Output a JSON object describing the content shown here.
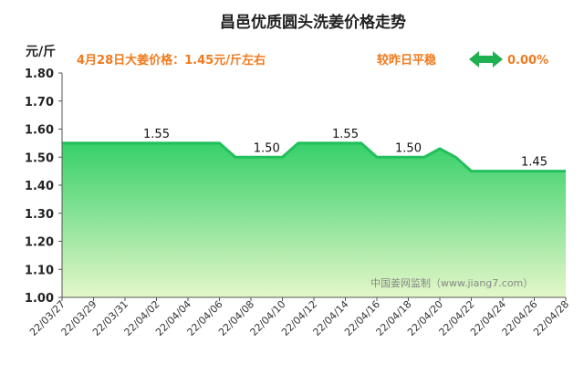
{
  "header": {
    "title": "昌邑优质圆头洗姜价格走势",
    "unit": "元/斤",
    "price_note": "4月28日大姜价格：1.45元/斤左右",
    "compare_label": "较昨日平稳",
    "compare_value": "0.00%"
  },
  "watermark": "中国姜网监制（www.jiang7.com）",
  "colors": {
    "line": "#22c05c",
    "fill_top": "#37d06a",
    "fill_bottom": "#e4f7c8",
    "accent": "#f07a1e",
    "arrow": "#1fb052"
  },
  "icons": {
    "trend": "double-arrow-icon"
  },
  "chart_data": {
    "type": "area",
    "title": "昌邑优质圆头洗姜价格走势",
    "ylabel": "元/斤",
    "ylim": [
      1.0,
      1.8
    ],
    "yticks": [
      "1.00",
      "1.10",
      "1.20",
      "1.30",
      "1.40",
      "1.50",
      "1.60",
      "1.70",
      "1.80"
    ],
    "x_tick_labels": [
      "22/03/27",
      "22/03/29",
      "22/03/31",
      "22/04/02",
      "22/04/04",
      "22/04/06",
      "22/04/08",
      "22/04/10",
      "22/04/12",
      "22/04/14",
      "22/04/16",
      "22/04/18",
      "22/04/20",
      "22/04/22",
      "22/04/24",
      "22/04/26",
      "22/04/28"
    ],
    "x": [
      "22/03/27",
      "22/03/28",
      "22/03/29",
      "22/03/30",
      "22/03/31",
      "22/04/01",
      "22/04/02",
      "22/04/03",
      "22/04/04",
      "22/04/05",
      "22/04/06",
      "22/04/07",
      "22/04/08",
      "22/04/09",
      "22/04/10",
      "22/04/11",
      "22/04/12",
      "22/04/13",
      "22/04/14",
      "22/04/15",
      "22/04/16",
      "22/04/17",
      "22/04/18",
      "22/04/19",
      "22/04/20",
      "22/04/21",
      "22/04/22",
      "22/04/23",
      "22/04/24",
      "22/04/25",
      "22/04/26",
      "22/04/27",
      "22/04/28"
    ],
    "values": [
      1.55,
      1.55,
      1.55,
      1.55,
      1.55,
      1.55,
      1.55,
      1.55,
      1.55,
      1.55,
      1.55,
      1.5,
      1.5,
      1.5,
      1.5,
      1.55,
      1.55,
      1.55,
      1.55,
      1.55,
      1.5,
      1.5,
      1.5,
      1.5,
      1.53,
      1.5,
      1.45,
      1.45,
      1.45,
      1.45,
      1.45,
      1.45,
      1.45
    ],
    "data_labels": [
      {
        "x": "22/04/02",
        "y": 1.55,
        "text": "1.55"
      },
      {
        "x": "22/04/09",
        "y": 1.5,
        "text": "1.50"
      },
      {
        "x": "22/04/14",
        "y": 1.55,
        "text": "1.55"
      },
      {
        "x": "22/04/18",
        "y": 1.5,
        "text": "1.50"
      },
      {
        "x": "22/04/26",
        "y": 1.45,
        "text": "1.45"
      }
    ],
    "grid": false
  }
}
